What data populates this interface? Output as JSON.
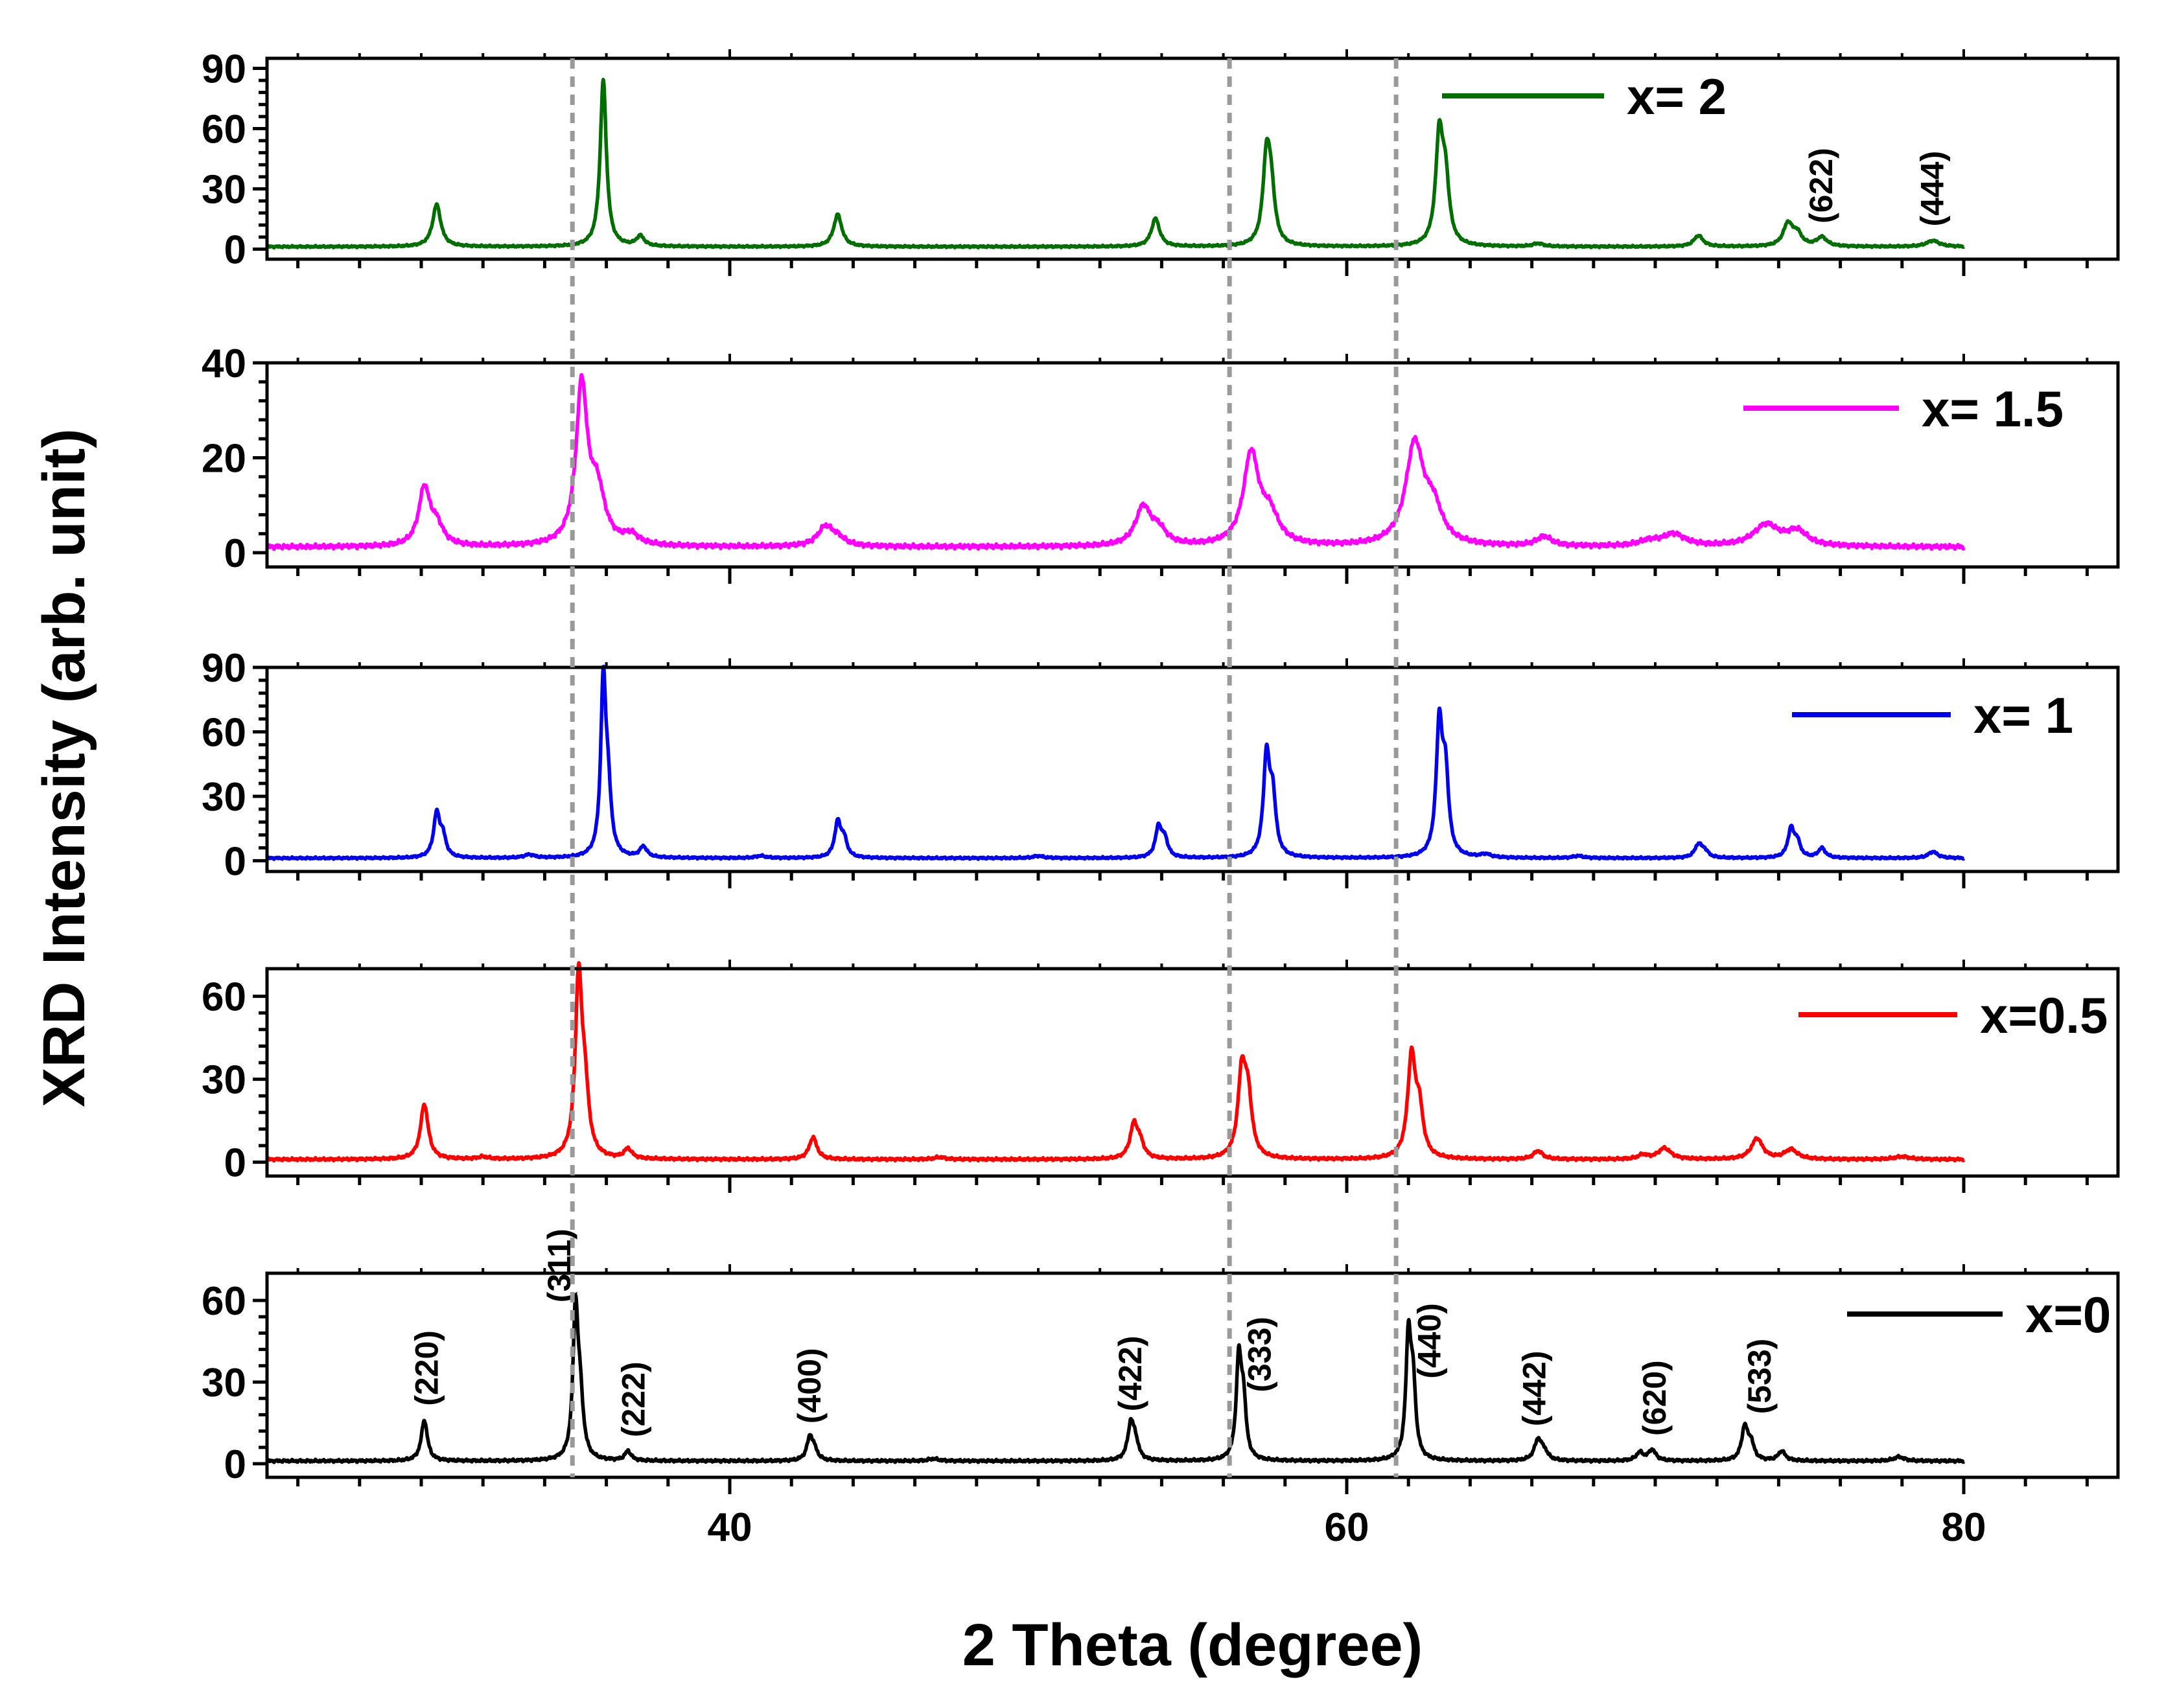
{
  "chart_data": {
    "type": "line",
    "xlabel": "2 Theta (degree)",
    "ylabel": "XRD Intensity (arb. unit)",
    "xlim": [
      25,
      85
    ],
    "x_major_ticks": [
      40,
      60,
      80
    ],
    "x_tick_labels": [
      "40",
      "60",
      "80"
    ],
    "guide_lines_x": [
      34.9,
      56.2,
      61.6
    ],
    "panels": [
      {
        "name": "x= 2",
        "legend": "x= 2",
        "color": "#006e00",
        "ylim": [
          -5,
          95
        ],
        "yticks": [
          0,
          30,
          60,
          90
        ],
        "ytick_labels": [
          "0",
          "30",
          "60",
          "90"
        ],
        "x_range": [
          25,
          80
        ],
        "baseline": 1.2,
        "peaks": [
          {
            "x": 30.5,
            "h": 21,
            "w": 0.16
          },
          {
            "x": 35.9,
            "h": 83,
            "w": 0.12
          },
          {
            "x": 37.1,
            "h": 5,
            "w": 0.15
          },
          {
            "x": 43.5,
            "h": 16,
            "w": 0.16
          },
          {
            "x": 53.8,
            "h": 14,
            "w": 0.16
          },
          {
            "x": 57.4,
            "h": 42,
            "w": 0.14
          },
          {
            "x": 57.55,
            "h": 24,
            "w": 0.14
          },
          {
            "x": 63.0,
            "h": 53,
            "w": 0.14
          },
          {
            "x": 63.2,
            "h": 30,
            "w": 0.14
          },
          {
            "x": 66.2,
            "h": 1.5,
            "w": 0.2
          },
          {
            "x": 71.4,
            "h": 5.5,
            "w": 0.18
          },
          {
            "x": 74.3,
            "h": 11,
            "w": 0.18
          },
          {
            "x": 74.6,
            "h": 6,
            "w": 0.18
          },
          {
            "x": 75.4,
            "h": 4.5,
            "w": 0.2
          },
          {
            "x": 79.0,
            "h": 3,
            "w": 0.25
          }
        ],
        "annotations": [
          {
            "label": "(622)",
            "x": 75.4
          },
          {
            "label": "(444)",
            "x": 79.0
          }
        ]
      },
      {
        "name": "x= 1.5",
        "legend": "x= 1.5",
        "color": "#ff00ff",
        "ylim": [
          -3,
          40
        ],
        "yticks": [
          0,
          20,
          40
        ],
        "ytick_labels": [
          "0",
          "20",
          "40"
        ],
        "x_range": [
          25,
          80
        ],
        "baseline": 1.2,
        "peaks": [
          {
            "x": 30.1,
            "h": 12,
            "w": 0.22
          },
          {
            "x": 30.5,
            "h": 4,
            "w": 0.25
          },
          {
            "x": 35.2,
            "h": 33,
            "w": 0.22
          },
          {
            "x": 35.7,
            "h": 11,
            "w": 0.3
          },
          {
            "x": 36.8,
            "h": 2,
            "w": 0.3
          },
          {
            "x": 43.1,
            "h": 4,
            "w": 0.3
          },
          {
            "x": 43.5,
            "h": 1.5,
            "w": 0.3
          },
          {
            "x": 53.4,
            "h": 8,
            "w": 0.3
          },
          {
            "x": 53.9,
            "h": 3,
            "w": 0.3
          },
          {
            "x": 56.9,
            "h": 19,
            "w": 0.3
          },
          {
            "x": 57.5,
            "h": 6,
            "w": 0.35
          },
          {
            "x": 62.2,
            "h": 21,
            "w": 0.35
          },
          {
            "x": 62.8,
            "h": 7,
            "w": 0.35
          },
          {
            "x": 66.4,
            "h": 2,
            "w": 0.3
          },
          {
            "x": 69.8,
            "h": 1,
            "w": 0.4
          },
          {
            "x": 70.6,
            "h": 2.5,
            "w": 0.45
          },
          {
            "x": 73.6,
            "h": 4.5,
            "w": 0.5
          },
          {
            "x": 74.6,
            "h": 3,
            "w": 0.4
          }
        ],
        "annotations": []
      },
      {
        "name": "x= 1",
        "legend": "x= 1",
        "color": "#0000ee",
        "ylim": [
          -5,
          90
        ],
        "yticks": [
          0,
          30,
          60,
          90
        ],
        "ytick_labels": [
          "0",
          "30",
          "60",
          "90"
        ],
        "x_range": [
          25,
          80
        ],
        "baseline": 1.2,
        "peaks": [
          {
            "x": 30.5,
            "h": 20,
            "w": 0.12
          },
          {
            "x": 30.7,
            "h": 9,
            "w": 0.12
          },
          {
            "x": 33.5,
            "h": 1.5,
            "w": 0.2
          },
          {
            "x": 35.9,
            "h": 78,
            "w": 0.1
          },
          {
            "x": 36.05,
            "h": 28,
            "w": 0.12
          },
          {
            "x": 37.2,
            "h": 5,
            "w": 0.14
          },
          {
            "x": 41.0,
            "h": 1,
            "w": 0.2
          },
          {
            "x": 43.5,
            "h": 16,
            "w": 0.12
          },
          {
            "x": 43.7,
            "h": 8,
            "w": 0.12
          },
          {
            "x": 50.0,
            "h": 1,
            "w": 0.2
          },
          {
            "x": 53.9,
            "h": 14,
            "w": 0.12
          },
          {
            "x": 54.1,
            "h": 8,
            "w": 0.12
          },
          {
            "x": 57.4,
            "h": 46,
            "w": 0.12
          },
          {
            "x": 57.6,
            "h": 26,
            "w": 0.12
          },
          {
            "x": 63.0,
            "h": 60,
            "w": 0.12
          },
          {
            "x": 63.2,
            "h": 36,
            "w": 0.12
          },
          {
            "x": 64.5,
            "h": 1.5,
            "w": 0.2
          },
          {
            "x": 67.5,
            "h": 1,
            "w": 0.2
          },
          {
            "x": 71.4,
            "h": 6,
            "w": 0.14
          },
          {
            "x": 71.6,
            "h": 3,
            "w": 0.14
          },
          {
            "x": 74.4,
            "h": 13,
            "w": 0.12
          },
          {
            "x": 74.6,
            "h": 7,
            "w": 0.12
          },
          {
            "x": 75.4,
            "h": 4.5,
            "w": 0.14
          },
          {
            "x": 79.0,
            "h": 3,
            "w": 0.18
          }
        ],
        "annotations": []
      },
      {
        "name": "x=0.5",
        "legend": "x=0.5",
        "color": "#ff0000",
        "ylim": [
          -5,
          70
        ],
        "yticks": [
          0,
          30,
          60
        ],
        "ytick_labels": [
          "0",
          "30",
          "60"
        ],
        "x_range": [
          25,
          80
        ],
        "baseline": 1.0,
        "peaks": [
          {
            "x": 30.1,
            "h": 20,
            "w": 0.15
          },
          {
            "x": 32.0,
            "h": 0.8,
            "w": 0.2
          },
          {
            "x": 35.1,
            "h": 63,
            "w": 0.13
          },
          {
            "x": 35.3,
            "h": 22,
            "w": 0.15
          },
          {
            "x": 36.7,
            "h": 3.5,
            "w": 0.15
          },
          {
            "x": 42.7,
            "h": 8,
            "w": 0.15
          },
          {
            "x": 46.8,
            "h": 0.8,
            "w": 0.2
          },
          {
            "x": 53.1,
            "h": 12,
            "w": 0.15
          },
          {
            "x": 53.3,
            "h": 5,
            "w": 0.15
          },
          {
            "x": 56.6,
            "h": 30,
            "w": 0.15
          },
          {
            "x": 56.8,
            "h": 20,
            "w": 0.15
          },
          {
            "x": 62.1,
            "h": 36,
            "w": 0.15
          },
          {
            "x": 62.35,
            "h": 16,
            "w": 0.15
          },
          {
            "x": 66.2,
            "h": 3,
            "w": 0.18
          },
          {
            "x": 69.6,
            "h": 1.5,
            "w": 0.18
          },
          {
            "x": 70.3,
            "h": 4,
            "w": 0.25
          },
          {
            "x": 73.3,
            "h": 7.5,
            "w": 0.22
          },
          {
            "x": 74.4,
            "h": 3.5,
            "w": 0.25
          },
          {
            "x": 78.0,
            "h": 1,
            "w": 0.3
          }
        ],
        "annotations": []
      },
      {
        "name": "x=0",
        "legend": "x=0",
        "color": "#000000",
        "ylim": [
          -5,
          70
        ],
        "yticks": [
          0,
          30,
          60
        ],
        "ytick_labels": [
          "0",
          "30",
          "60"
        ],
        "x_range": [
          25,
          80
        ],
        "baseline": 1.0,
        "peaks": [
          {
            "x": 30.1,
            "h": 15,
            "w": 0.12
          },
          {
            "x": 35.0,
            "h": 53,
            "w": 0.1
          },
          {
            "x": 35.15,
            "h": 20,
            "w": 0.12
          },
          {
            "x": 36.7,
            "h": 3.5,
            "w": 0.12
          },
          {
            "x": 42.6,
            "h": 8.5,
            "w": 0.12
          },
          {
            "x": 42.75,
            "h": 3,
            "w": 0.12
          },
          {
            "x": 46.6,
            "h": 0.8,
            "w": 0.2
          },
          {
            "x": 53.0,
            "h": 13,
            "w": 0.12
          },
          {
            "x": 53.15,
            "h": 6,
            "w": 0.12
          },
          {
            "x": 56.5,
            "h": 36,
            "w": 0.1
          },
          {
            "x": 56.65,
            "h": 20,
            "w": 0.1
          },
          {
            "x": 62.0,
            "h": 44,
            "w": 0.1
          },
          {
            "x": 62.15,
            "h": 25,
            "w": 0.1
          },
          {
            "x": 66.2,
            "h": 7.5,
            "w": 0.14
          },
          {
            "x": 66.4,
            "h": 3,
            "w": 0.14
          },
          {
            "x": 69.5,
            "h": 3,
            "w": 0.14
          },
          {
            "x": 69.9,
            "h": 4,
            "w": 0.14
          },
          {
            "x": 72.9,
            "h": 12,
            "w": 0.12
          },
          {
            "x": 73.1,
            "h": 6,
            "w": 0.12
          },
          {
            "x": 74.1,
            "h": 3.5,
            "w": 0.14
          },
          {
            "x": 77.9,
            "h": 1.5,
            "w": 0.2
          }
        ],
        "annotations": [
          {
            "label": "(220)",
            "x": 30.2
          },
          {
            "label": "(311)",
            "x": 34.5
          },
          {
            "label": "(222)",
            "x": 36.9
          },
          {
            "label": "(400)",
            "x": 42.6
          },
          {
            "label": "(422)",
            "x": 53.0
          },
          {
            "label": "(333)",
            "x": 57.2
          },
          {
            "label": "(440)",
            "x": 62.7
          },
          {
            "label": "(442)",
            "x": 66.1
          },
          {
            "label": "(620)",
            "x": 70.0
          },
          {
            "label": "(533)",
            "x": 73.4
          }
        ]
      }
    ]
  }
}
